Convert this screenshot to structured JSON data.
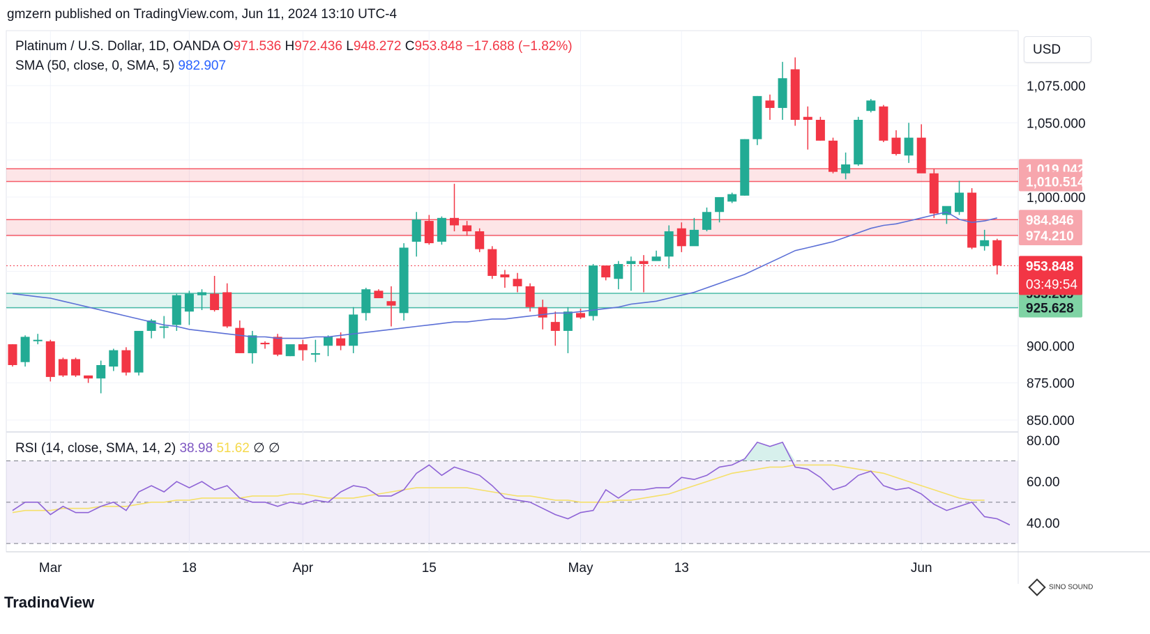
{
  "header": {
    "publisher_line": "gmzern published on TradingView.com, Jun 11, 2024 13:10 UTC-4"
  },
  "legend": {
    "symbol": "Platinum / U.S. Dollar, 1D, OANDA",
    "open_label": "O",
    "open": "971.536",
    "high_label": "H",
    "high": "972.436",
    "low_label": "L",
    "low": "948.272",
    "close_label": "C",
    "close": "953.848",
    "change": "−17.688 (−1.82%)",
    "sma_label": "SMA (50, close, 0, SMA, 5)",
    "sma_value": "982.907",
    "rsi_label": "RSI (14, close, SMA, 14, 2)",
    "rsi_value": "38.98",
    "rsi_ma_value": "51.62",
    "rsi_extra1": "∅",
    "rsi_extra2": "∅"
  },
  "currency": "USD",
  "logo_text": "TradingView",
  "watermark_text": "SINO SOUND",
  "colors": {
    "up": "#22ab94",
    "down": "#f23645",
    "sma": "#5b6fd6",
    "rsi": "#8e63d6",
    "rsi_ma": "#f5e06a",
    "resistance_zone": "#f23645",
    "support_zone": "#22ab94"
  },
  "chart_data": [
    {
      "type": "candlestick",
      "pair": "Platinum / U.S. Dollar",
      "interval": "1D",
      "y_ticks": [
        "850.000",
        "875.000",
        "900.000",
        "925.628",
        "935.269",
        "953.848",
        "974.210",
        "984.846",
        "1,000.000",
        "1,010.514",
        "1,019.042",
        "1,050.000",
        "1,075.000"
      ],
      "price_axis_values": [
        850,
        875,
        900,
        1000,
        1050,
        1075
      ],
      "ylim": [
        842,
        1112
      ],
      "x_tick_labels": [
        "Mar",
        "18",
        "Apr",
        "15",
        "May",
        "13",
        "Jun"
      ],
      "x_tick_index": [
        3,
        14,
        23,
        33,
        45,
        53,
        72
      ],
      "candles_ohlc": [
        [
          901,
          901,
          886,
          887
        ],
        [
          889,
          907,
          886,
          906
        ],
        [
          904,
          908,
          901,
          904
        ],
        [
          903,
          904,
          876,
          879
        ],
        [
          891,
          892,
          879,
          880
        ],
        [
          891,
          892,
          879,
          880
        ],
        [
          880,
          880,
          875,
          878
        ],
        [
          878,
          890,
          868,
          887
        ],
        [
          886,
          898,
          883,
          897
        ],
        [
          897,
          899,
          880,
          882
        ],
        [
          882,
          906,
          880,
          910
        ],
        [
          910,
          918,
          905,
          917
        ],
        [
          913,
          920,
          905,
          913
        ],
        [
          914,
          935,
          910,
          934
        ],
        [
          923,
          937,
          914,
          935
        ],
        [
          934,
          938,
          924,
          936
        ],
        [
          935,
          947,
          923,
          924
        ],
        [
          936,
          942,
          912,
          913
        ],
        [
          912,
          917,
          895,
          895
        ],
        [
          895,
          910,
          888,
          907
        ],
        [
          902,
          903,
          898,
          901
        ],
        [
          906,
          908,
          893,
          894
        ],
        [
          893,
          900,
          893,
          901
        ],
        [
          901,
          904,
          890,
          897
        ],
        [
          894,
          904,
          889,
          895
        ],
        [
          900,
          907,
          893,
          906
        ],
        [
          905,
          909,
          897,
          900
        ],
        [
          900,
          926,
          895,
          921
        ],
        [
          922,
          939,
          917,
          938
        ],
        [
          937,
          938,
          933,
          932
        ],
        [
          930,
          940,
          913,
          927
        ],
        [
          922,
          969,
          917,
          966
        ],
        [
          970,
          990,
          960,
          985
        ],
        [
          984,
          988,
          968,
          969
        ],
        [
          970,
          987,
          968,
          986
        ],
        [
          986,
          1009,
          977,
          981
        ],
        [
          981,
          984,
          974,
          977
        ],
        [
          977,
          979,
          963,
          965
        ],
        [
          965,
          967,
          945,
          947
        ],
        [
          948,
          951,
          939,
          946
        ],
        [
          945,
          949,
          936,
          940
        ],
        [
          940,
          942,
          923,
          926
        ],
        [
          926,
          931,
          911,
          919
        ],
        [
          916,
          923,
          900,
          910
        ],
        [
          910,
          926,
          895,
          923
        ],
        [
          922,
          925,
          918,
          919
        ],
        [
          920,
          955,
          917,
          954
        ],
        [
          954,
          951,
          944,
          946
        ],
        [
          945,
          957,
          938,
          955
        ],
        [
          955,
          960,
          937,
          957
        ],
        [
          957,
          961,
          936,
          955
        ],
        [
          957,
          964,
          958,
          960
        ],
        [
          960,
          981,
          952,
          977
        ],
        [
          979,
          983,
          963,
          967
        ],
        [
          967,
          986,
          976,
          978
        ],
        [
          978,
          993,
          977,
          990
        ],
        [
          990,
          999,
          983,
          1000
        ],
        [
          997,
          1003,
          996,
          1002
        ],
        [
          1001,
          1039,
          1001,
          1039
        ],
        [
          1039,
          1068,
          1035,
          1068
        ],
        [
          1065,
          1069,
          1052,
          1060
        ],
        [
          1060,
          1091,
          1052,
          1080
        ],
        [
          1086,
          1094,
          1048,
          1052
        ],
        [
          1054,
          1061,
          1032,
          1052
        ],
        [
          1052,
          1054,
          1038,
          1038
        ],
        [
          1038,
          1040,
          1016,
          1017
        ],
        [
          1016,
          1030,
          1012,
          1022
        ],
        [
          1022,
          1054,
          1021,
          1052
        ],
        [
          1058,
          1066,
          1057,
          1065
        ],
        [
          1061,
          1062,
          1037,
          1038
        ],
        [
          1040,
          1045,
          1028,
          1029
        ],
        [
          1028,
          1050,
          1023,
          1040
        ],
        [
          1040,
          1049,
          1017,
          1016
        ],
        [
          1016,
          1019,
          986,
          989
        ],
        [
          988,
          993,
          982,
          994
        ],
        [
          990,
          1011,
          988,
          1003
        ],
        [
          1003,
          1006,
          965,
          966
        ],
        [
          967,
          978,
          964,
          971
        ],
        [
          971,
          972,
          948,
          954
        ]
      ],
      "sma": {
        "name": "SMA (50, close, 0, SMA, 5)",
        "last_value": 982.907,
        "values": [
          935,
          934,
          933,
          932,
          930,
          928,
          926,
          924,
          922,
          920,
          918,
          916,
          914,
          913,
          911,
          910,
          909,
          908,
          907,
          906,
          906,
          905,
          905,
          905,
          906,
          906,
          907,
          908,
          909,
          910,
          911,
          912,
          913,
          914,
          915,
          916,
          916,
          917,
          918,
          918,
          919,
          920,
          921,
          922,
          922,
          923,
          924,
          925,
          926,
          928,
          929,
          930,
          932,
          934,
          936,
          939,
          942,
          945,
          948,
          952,
          956,
          960,
          964,
          966,
          968,
          970,
          973,
          976,
          979,
          981,
          982,
          984,
          986,
          988,
          990,
          985,
          983,
          984,
          986
        ]
      },
      "zones": [
        {
          "name": "resistance-upper",
          "from": 1010.514,
          "to": 1019.042
        },
        {
          "name": "resistance-lower",
          "from": 974.21,
          "to": 984.846
        },
        {
          "name": "support",
          "from": 925.628,
          "to": 935.269
        }
      ],
      "current_price": 953.848,
      "countdown": "03:49:54",
      "price_labels": {
        "r1_top": "1,019.042",
        "r1_bottom": "1,010.514",
        "r2_top": "984.846",
        "r2_bottom": "974.210",
        "current": "953.848",
        "s_top": "935.269",
        "s_bottom": "925.628"
      }
    },
    {
      "type": "line",
      "name": "RSI (14, close, SMA, 14, 2)",
      "ylim": [
        26,
        84
      ],
      "y_ticks": [
        "40.00",
        "60.00",
        "80.00"
      ],
      "levels": [
        70,
        50,
        30
      ],
      "rsi": [
        46,
        50,
        50,
        44,
        48,
        45,
        45,
        48,
        50,
        46,
        55,
        58,
        55,
        60,
        57,
        60,
        56,
        58,
        52,
        50,
        50,
        48,
        50,
        49,
        51,
        50,
        55,
        58,
        57,
        53,
        53,
        56,
        64,
        68,
        63,
        67,
        65,
        63,
        58,
        52,
        51,
        50,
        47,
        44,
        42,
        45,
        46,
        56,
        52,
        56,
        56,
        57,
        57,
        62,
        61,
        63,
        67,
        68,
        71,
        79,
        77,
        79,
        67,
        66,
        62,
        56,
        58,
        63,
        65,
        58,
        56,
        57,
        54,
        49,
        46,
        48,
        50,
        43,
        42,
        39
      ],
      "rsi_ma": [
        45,
        46,
        46,
        46,
        47,
        47,
        47,
        48,
        48,
        48,
        49,
        50,
        50,
        51,
        51,
        52,
        52,
        52,
        52,
        53,
        53,
        53,
        54,
        54,
        53,
        52,
        52,
        52,
        53,
        54,
        55,
        56,
        57,
        57,
        57,
        57,
        57,
        56,
        55,
        54,
        53,
        53,
        52,
        51,
        51,
        50,
        50,
        50,
        51,
        51,
        52,
        53,
        54,
        56,
        58,
        60,
        62,
        64,
        65,
        66,
        67,
        67,
        68,
        68,
        68,
        68,
        67,
        66,
        65,
        64,
        62,
        60,
        58,
        56,
        54,
        52,
        51,
        51
      ]
    }
  ]
}
